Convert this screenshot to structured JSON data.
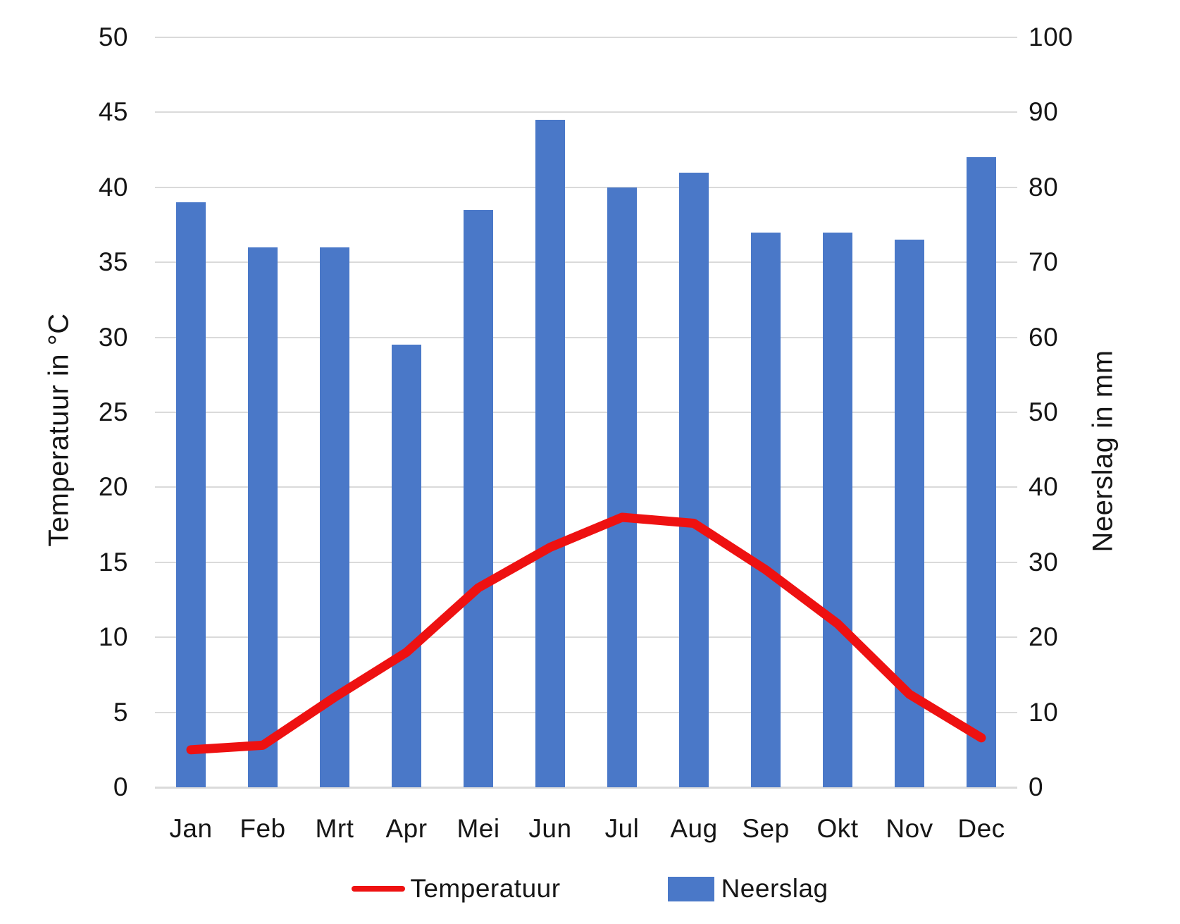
{
  "chart_data": {
    "type": "combo-bar-line",
    "title": "",
    "categories": [
      "Jan",
      "Feb",
      "Mrt",
      "Apr",
      "Mei",
      "Jun",
      "Jul",
      "Aug",
      "Sep",
      "Okt",
      "Nov",
      "Dec"
    ],
    "series": [
      {
        "name": "Temperatuur",
        "type": "line",
        "axis": "left",
        "color": "#ee1111",
        "values": [
          2.5,
          2.8,
          6,
          9,
          13.3,
          16,
          18,
          17.6,
          14.5,
          10.9,
          6.2,
          3.3
        ]
      },
      {
        "name": "Neerslag",
        "type": "bar",
        "axis": "right",
        "color": "#4a78c8",
        "values": [
          78,
          72,
          72,
          59,
          77,
          89,
          80,
          82,
          74,
          74,
          73,
          84
        ]
      }
    ],
    "left_axis": {
      "title": "Temperatuur in °C",
      "min": 0,
      "max": 50,
      "step": 5,
      "ticks": [
        0,
        5,
        10,
        15,
        20,
        25,
        30,
        35,
        40,
        45,
        50
      ]
    },
    "right_axis": {
      "title": "Neerslag in mm",
      "min": 0,
      "max": 100,
      "step": 10,
      "ticks": [
        0,
        10,
        20,
        30,
        40,
        50,
        60,
        70,
        80,
        90,
        100
      ]
    },
    "grid": true,
    "legend_position": "bottom"
  },
  "legend": {
    "items": [
      {
        "label": "Temperatuur",
        "swatch": "line",
        "color": "#ee1111"
      },
      {
        "label": "Neerslag",
        "swatch": "rect",
        "color": "#4a78c8"
      }
    ]
  },
  "colors": {
    "background": "#ffffff",
    "gridline": "#dadada",
    "text": "#161616",
    "bar": "#4a78c8",
    "line": "#ee1111"
  }
}
